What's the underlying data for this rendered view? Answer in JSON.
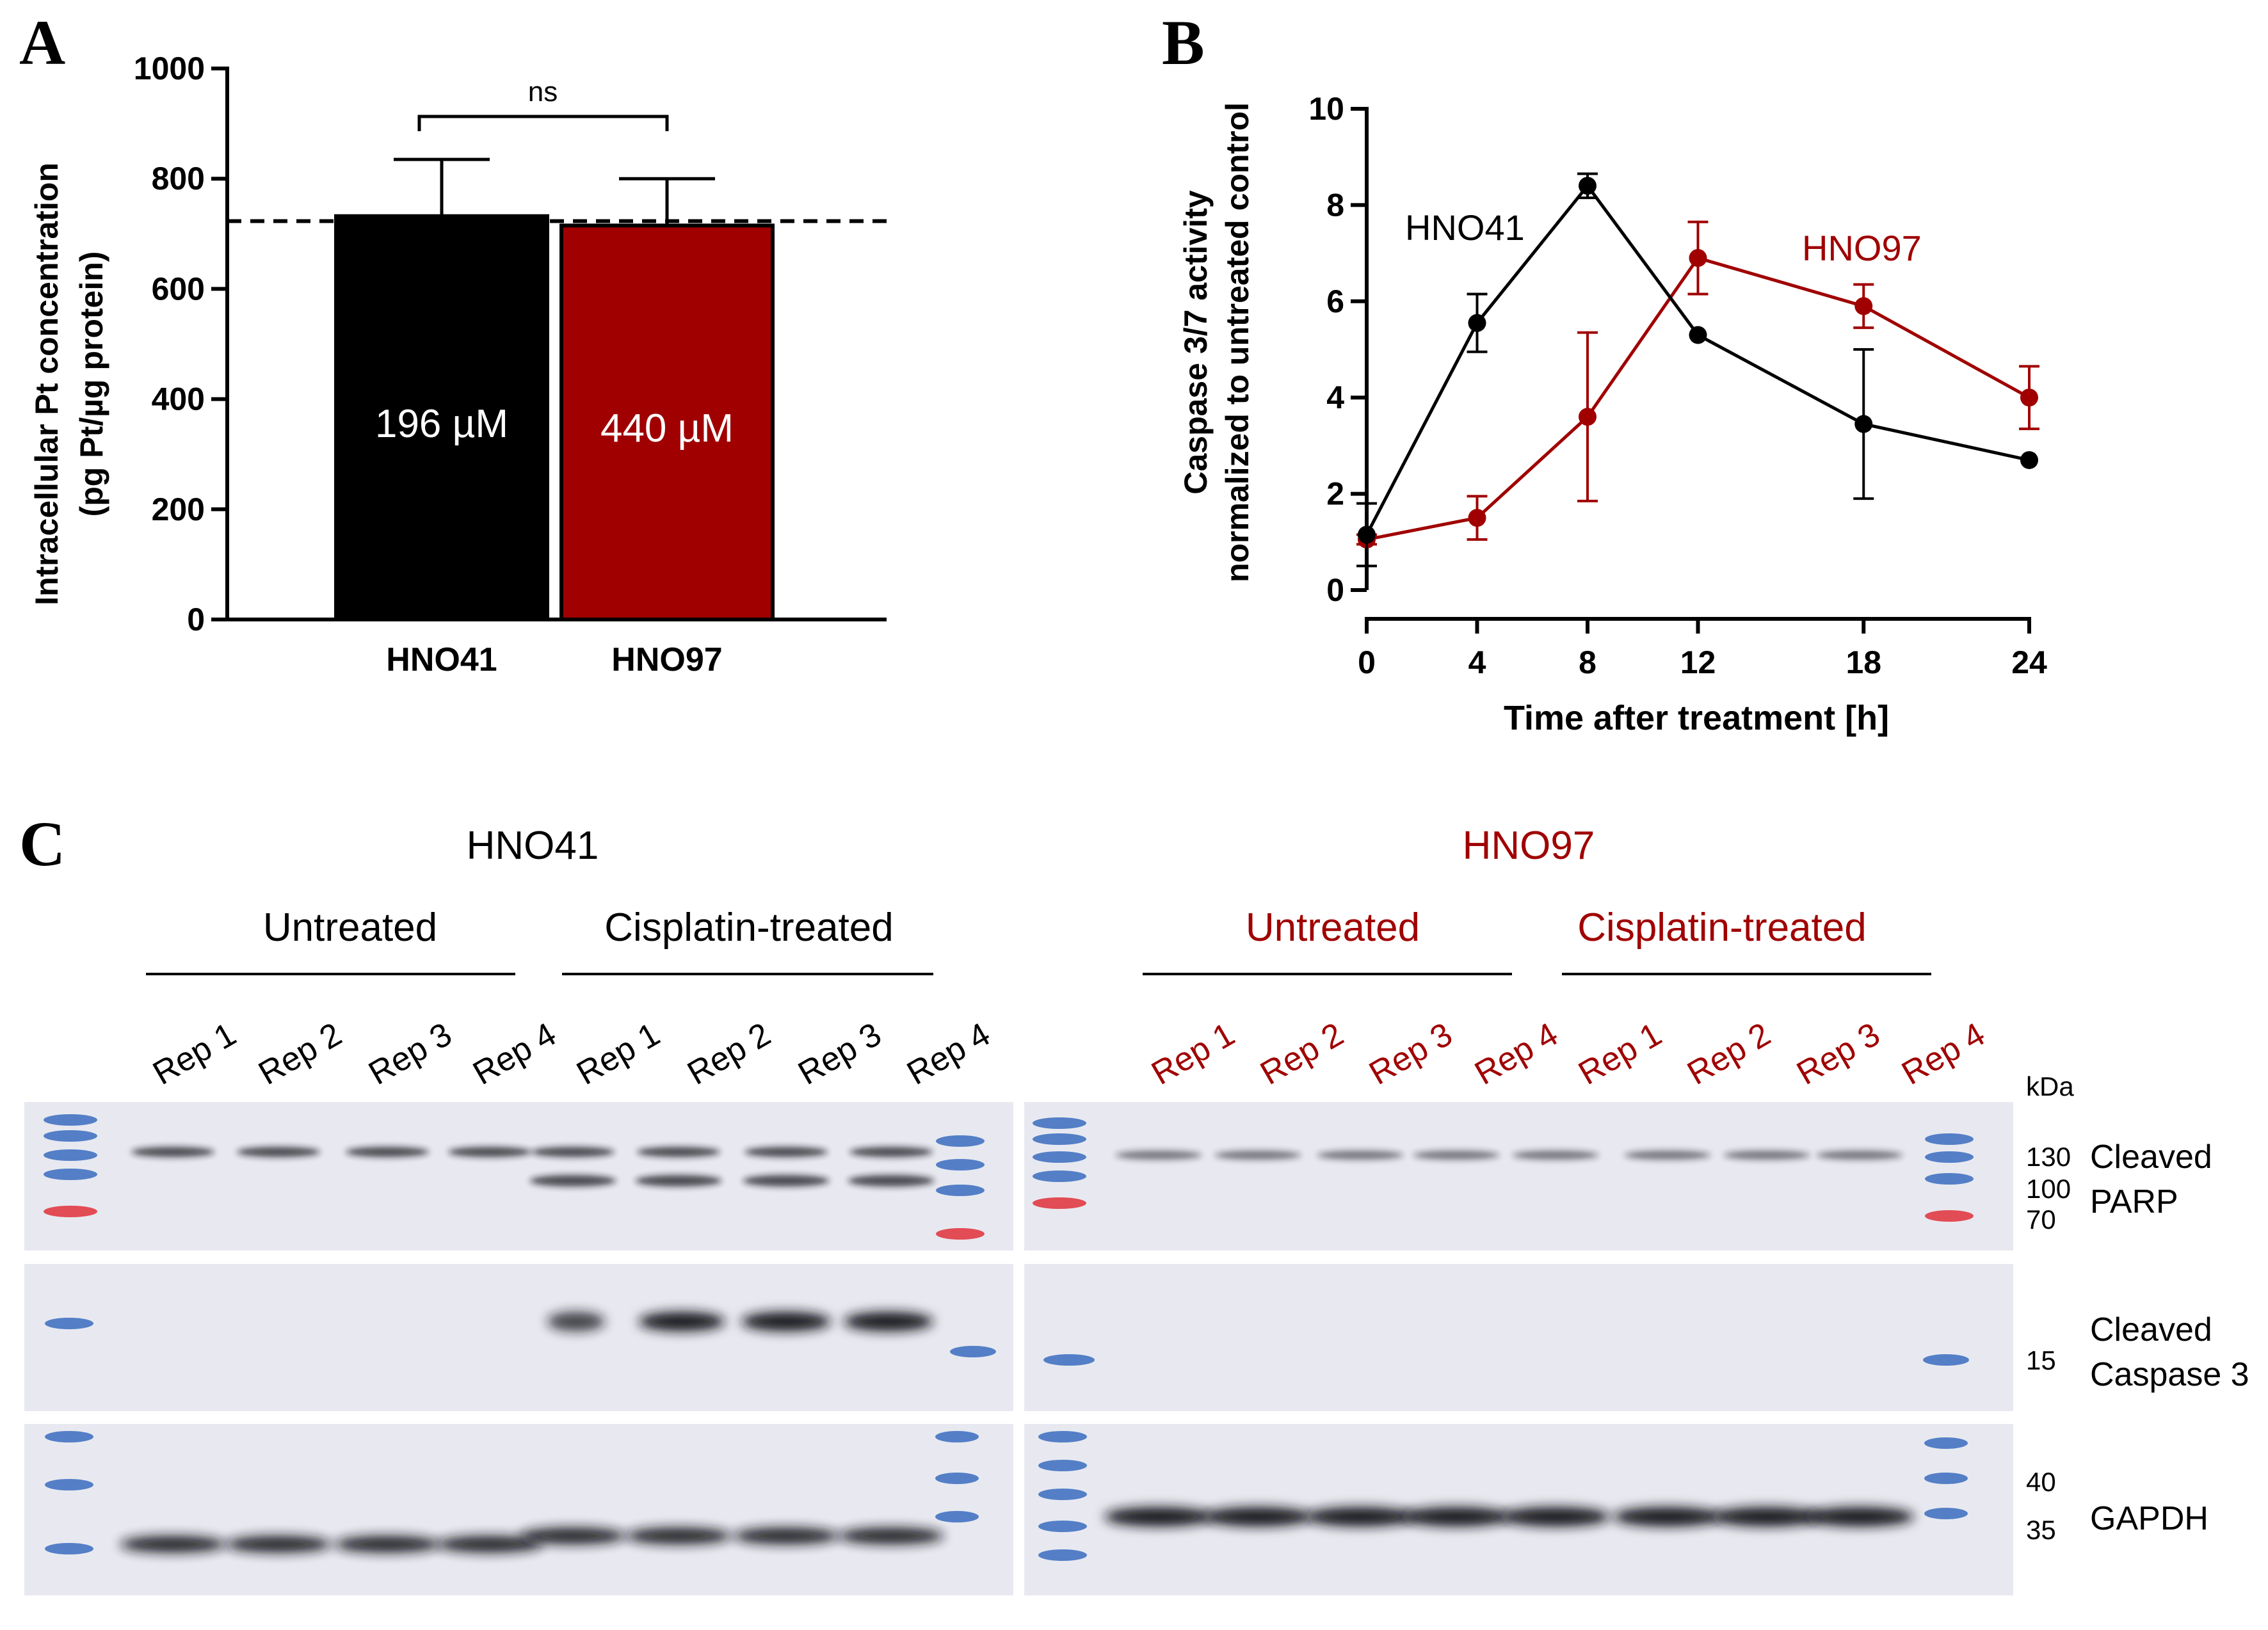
{
  "colors": {
    "hno41": "#000000",
    "hno97": "#a00000",
    "blot_bg": "#e8e9f0"
  },
  "panels": {
    "a": "A",
    "b": "B",
    "c": "C"
  },
  "chart_data": [
    {
      "type": "bar",
      "categories": [
        "HNO41",
        "HNO97"
      ],
      "values": [
        732,
        715
      ],
      "errors": [
        103,
        85
      ],
      "bar_labels": [
        "196 µM",
        "440 µM"
      ],
      "ylabel_line1": "Intracellular Pt concentration",
      "ylabel_line2": "(pg Pt/µg protein)",
      "ylim": [
        0,
        1000
      ],
      "yticks": [
        0,
        200,
        400,
        600,
        800,
        1000
      ],
      "reference_line": 723,
      "significance": "ns",
      "grid": false
    },
    {
      "type": "line",
      "x": [
        0,
        4,
        8,
        12,
        18,
        24
      ],
      "xticks": [
        "0",
        "4",
        "8",
        "12",
        "18",
        "24"
      ],
      "series": [
        {
          "name": "HNO41",
          "values": [
            1.15,
            5.55,
            8.4,
            5.3,
            3.45,
            2.7
          ],
          "errors": [
            0.65,
            0.6,
            0.25,
            0.0,
            1.55,
            0.0
          ]
        },
        {
          "name": "HNO97",
          "values": [
            1.05,
            1.5,
            3.6,
            6.9,
            5.9,
            4.0
          ],
          "errors": [
            0.1,
            0.45,
            1.75,
            0.75,
            0.45,
            0.65
          ]
        }
      ],
      "xlabel": "Time after treatment [h]",
      "ylabel_line1": "Caspase 3/7 activity",
      "ylabel_line2": "normalized to untreated control",
      "ylim": [
        0,
        10
      ],
      "yticks": [
        0,
        2,
        4,
        6,
        8,
        10
      ],
      "grid": false
    }
  ],
  "western": {
    "left": {
      "cell_line": "HNO41",
      "groups": [
        "Untreated",
        "Cisplatin-treated"
      ],
      "lanes": [
        "Rep 1",
        "Rep 2",
        "Rep 3",
        "Rep 4",
        "Rep 1",
        "Rep 2",
        "Rep 3",
        "Rep 4"
      ]
    },
    "right": {
      "cell_line": "HNO97",
      "groups": [
        "Untreated",
        "Cisplatin-treated"
      ],
      "lanes": [
        "Rep 1",
        "Rep 2",
        "Rep 3",
        "Rep 4",
        "Rep 1",
        "Rep 2",
        "Rep 3",
        "Rep 4"
      ]
    },
    "kda_label": "kDa",
    "markers": {
      "m130": "130",
      "m100": "100",
      "m70": "70",
      "m15": "15",
      "m40": "40",
      "m35": "35"
    },
    "bands": {
      "parp_1": "Cleaved",
      "parp_2": "PARP",
      "casp_1": "Cleaved",
      "casp_2": "Caspase 3",
      "gapdh": "GAPDH"
    }
  }
}
